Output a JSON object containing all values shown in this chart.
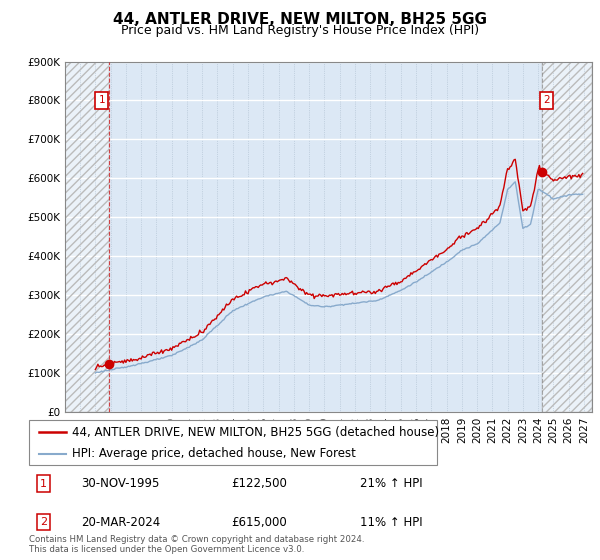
{
  "title": "44, ANTLER DRIVE, NEW MILTON, BH25 5GG",
  "subtitle": "Price paid vs. HM Land Registry's House Price Index (HPI)",
  "ylim": [
    0,
    900000
  ],
  "yticks": [
    0,
    100000,
    200000,
    300000,
    400000,
    500000,
    600000,
    700000,
    800000,
    900000
  ],
  "ytick_labels": [
    "£0",
    "£100K",
    "£200K",
    "£300K",
    "£400K",
    "£500K",
    "£600K",
    "£700K",
    "£800K",
    "£900K"
  ],
  "xlim_start": 1993.0,
  "xlim_end": 2027.5,
  "sale_date_1": 1995.92,
  "sale_price_1": 122500,
  "sale_date_2": 2024.22,
  "sale_price_2": 615000,
  "legend_label_red": "44, ANTLER DRIVE, NEW MILTON, BH25 5GG (detached house)",
  "legend_label_blue": "HPI: Average price, detached house, New Forest",
  "table_rows": [
    [
      "1",
      "30-NOV-1995",
      "£122,500",
      "21% ↑ HPI"
    ],
    [
      "2",
      "20-MAR-2024",
      "£615,000",
      "11% ↑ HPI"
    ]
  ],
  "footer": "Contains HM Land Registry data © Crown copyright and database right 2024.\nThis data is licensed under the Open Government Licence v3.0.",
  "red_color": "#cc0000",
  "blue_color": "#88aacc",
  "plot_bg_color": "#dce8f5",
  "grid_color": "#ffffff",
  "dot_grid_color": "#aabbcc",
  "hatch_color": "#bbbbbb",
  "title_fontsize": 11,
  "subtitle_fontsize": 9,
  "tick_fontsize": 7.5,
  "legend_fontsize": 8.5,
  "hatch_left_end": 1995.92,
  "hatch_right_start": 2024.22
}
